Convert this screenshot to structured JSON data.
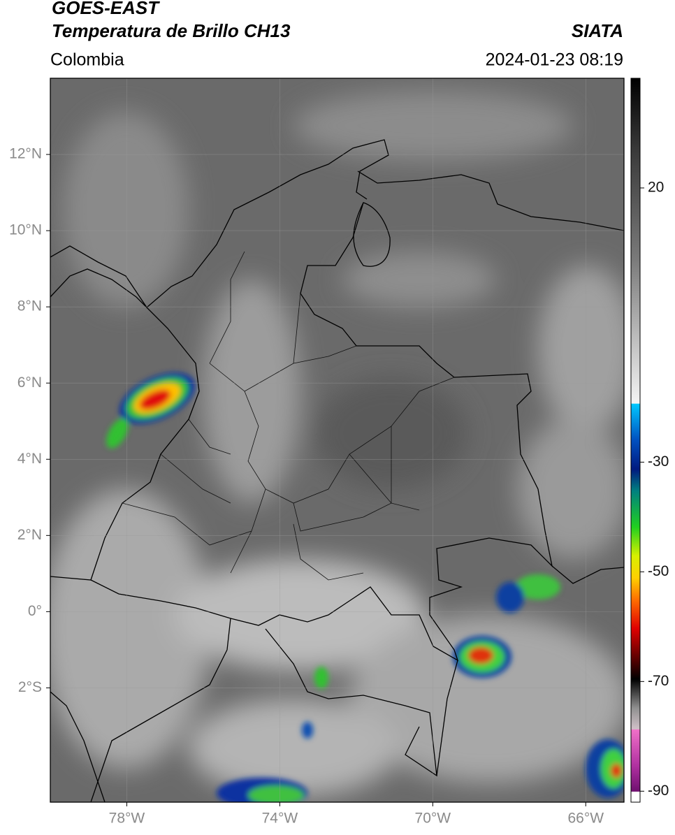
{
  "header": {
    "title": "GOES-EAST",
    "subtitle": "Temperatura de Brillo CH13",
    "source": "SIATA",
    "region": "Colombia",
    "datetime": "2024-01-23 08:19"
  },
  "map": {
    "lonlim": [
      -80,
      -65
    ],
    "latlim": [
      -5,
      14
    ],
    "lonticks": [
      {
        "value": -78,
        "label": "78°W"
      },
      {
        "value": -74,
        "label": "74°W"
      },
      {
        "value": -70,
        "label": "70°W"
      },
      {
        "value": -66,
        "label": "66°W"
      }
    ],
    "latticks": [
      {
        "value": 12,
        "label": "12°N"
      },
      {
        "value": 10,
        "label": "10°N"
      },
      {
        "value": 8,
        "label": "8°N"
      },
      {
        "value": 6,
        "label": "6°N"
      },
      {
        "value": 4,
        "label": "4°N"
      },
      {
        "value": 2,
        "label": "2°N"
      },
      {
        "value": 0,
        "label": "0°"
      },
      {
        "value": -2,
        "label": "2°S"
      }
    ],
    "grid": true
  },
  "colorbar": {
    "lim": [
      -92,
      40
    ],
    "ticks": [
      20,
      -30,
      -50,
      -70,
      -90
    ]
  }
}
